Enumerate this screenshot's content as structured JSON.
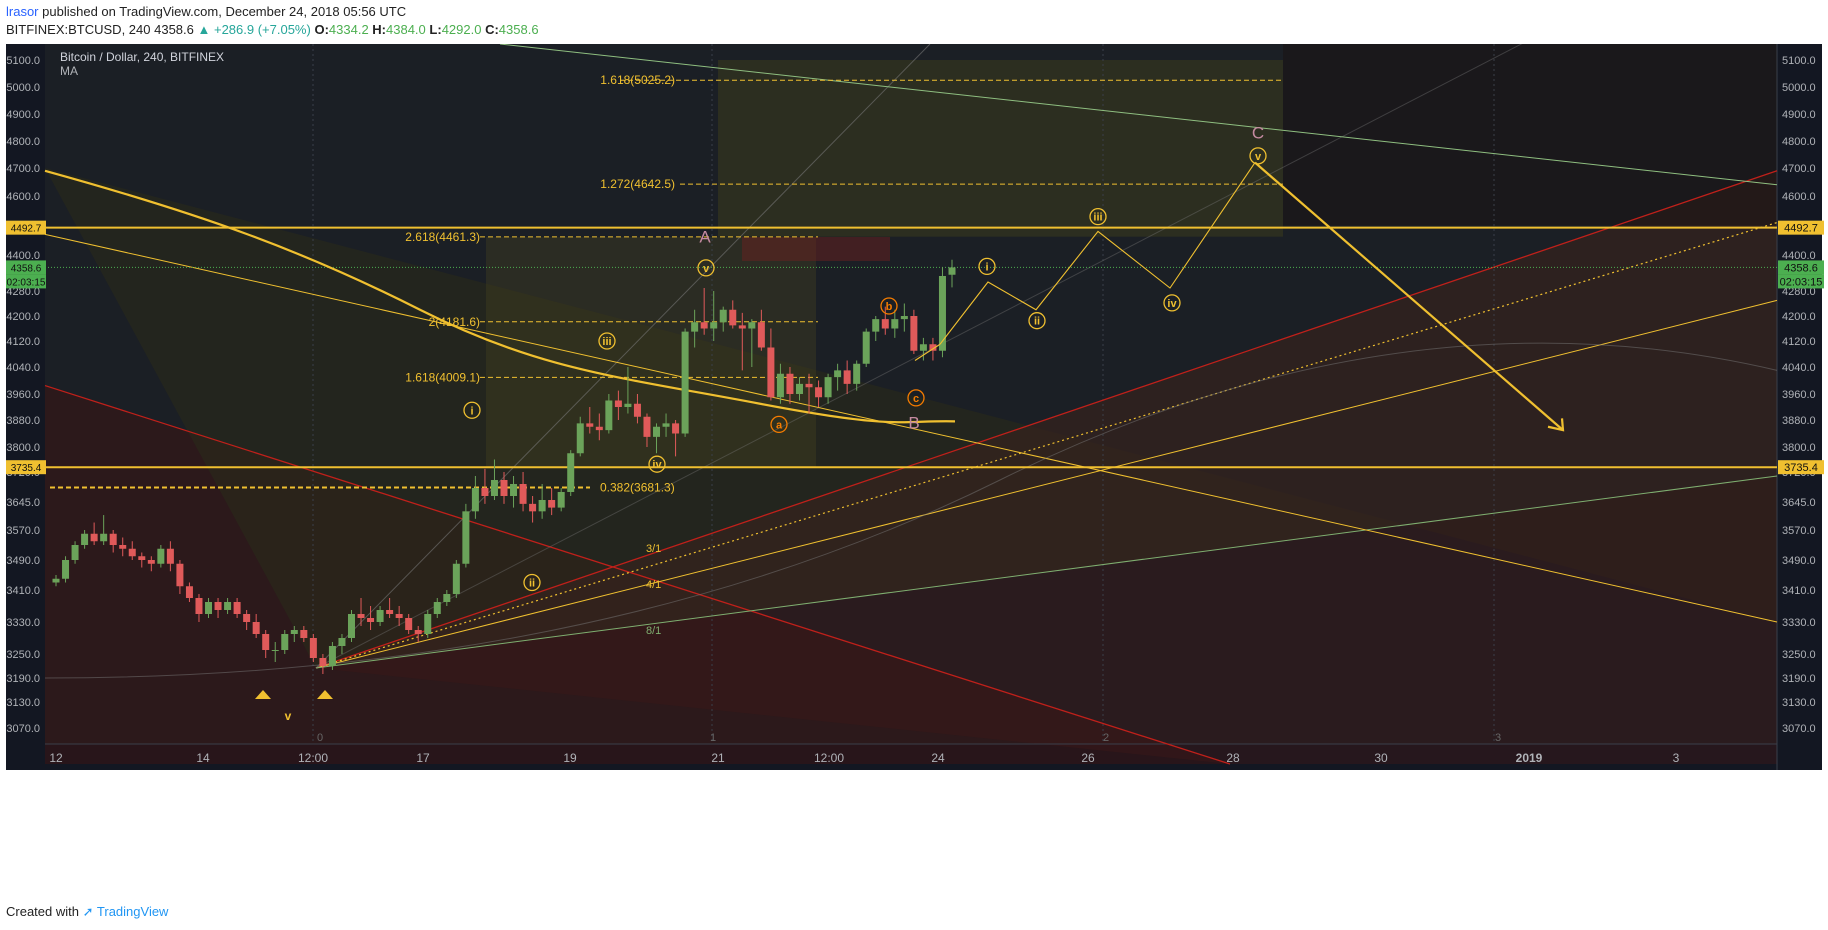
{
  "header": {
    "user": "lrasor",
    "published_text": "published on TradingView.com, December 24, 2018 05:56 UTC",
    "symbol": "BITFINEX:BTCUSD, 240",
    "last": "4358.6",
    "change": "▲ +286.9 (+7.05%)",
    "o_label": "O:",
    "o": "4334.2",
    "h_label": "H:",
    "h": "4384.0",
    "l_label": "L:",
    "l": "4292.0",
    "c_label": "C:",
    "c": "4358.6"
  },
  "legend": {
    "title": "Bitcoin / Dollar, 240, BITFINEX",
    "indicator": "MA"
  },
  "footer": {
    "created_with": "Created with",
    "brand": "TradingView"
  },
  "colors": {
    "background": "#131722",
    "up": "#6ba35a",
    "down": "#e05a5a",
    "gold": "#f0c030",
    "orange": "#f57c00",
    "red_line": "#c0201a",
    "green_line": "#7faf70",
    "axis_text": "#b0b3b8",
    "pink": "#c48aa0"
  },
  "chart_data": {
    "type": "candlestick",
    "symbol": "BITFINEX:BTCUSD",
    "interval": "240",
    "ylim": [
      3020,
      5160
    ],
    "y_ticks": [
      3070,
      3130,
      3190,
      3250,
      3330,
      3410,
      3490,
      3570,
      3645,
      3720,
      3800,
      3880,
      3960,
      4040,
      4120,
      4200,
      4280,
      4400,
      4600,
      4700,
      4800,
      4900,
      5000,
      5100
    ],
    "y_tick_labels": [
      "3070.0",
      "3130.0",
      "3190.0",
      "3250.0",
      "3330.0",
      "3410.0",
      "3490.0",
      "3570.0",
      "3645.0",
      "3720.0",
      "3800.0",
      "3880.0",
      "3960.0",
      "4040.0",
      "4120.0",
      "4200.0",
      "4280.0",
      "4400.0",
      "4600.0",
      "4700.0",
      "4800.0",
      "4900.0",
      "5000.0",
      "5100.0"
    ],
    "x_ticks": [
      "12",
      "14",
      "12:00",
      "17",
      "19",
      "21",
      "12:00",
      "24",
      "26",
      "28",
      "30",
      "2019",
      "3"
    ],
    "price_tags": [
      {
        "label": "4492.7",
        "value": 4492.7,
        "color": "#f0c030"
      },
      {
        "label": "4358.6",
        "value": 4358.6,
        "color": "#4caf50"
      },
      {
        "label": "02:03:15",
        "value": 4312,
        "color": "#4caf50"
      },
      {
        "label": "3735.4",
        "value": 3735.4,
        "color": "#f0c030"
      }
    ],
    "horizontal_levels": [
      4492.7,
      3735.4
    ],
    "last_price": 4358.6,
    "candles": [
      [
        3430,
        3450,
        3420,
        3440
      ],
      [
        3440,
        3500,
        3430,
        3490
      ],
      [
        3490,
        3540,
        3480,
        3530
      ],
      [
        3530,
        3570,
        3520,
        3560
      ],
      [
        3560,
        3590,
        3530,
        3540
      ],
      [
        3540,
        3610,
        3530,
        3560
      ],
      [
        3560,
        3570,
        3510,
        3530
      ],
      [
        3530,
        3550,
        3500,
        3520
      ],
      [
        3520,
        3540,
        3490,
        3500
      ],
      [
        3500,
        3510,
        3470,
        3490
      ],
      [
        3490,
        3500,
        3460,
        3480
      ],
      [
        3480,
        3530,
        3470,
        3520
      ],
      [
        3520,
        3540,
        3460,
        3480
      ],
      [
        3480,
        3490,
        3400,
        3420
      ],
      [
        3420,
        3430,
        3380,
        3390
      ],
      [
        3390,
        3400,
        3330,
        3350
      ],
      [
        3350,
        3390,
        3340,
        3380
      ],
      [
        3380,
        3390,
        3340,
        3360
      ],
      [
        3360,
        3390,
        3350,
        3380
      ],
      [
        3380,
        3390,
        3340,
        3350
      ],
      [
        3350,
        3360,
        3310,
        3330
      ],
      [
        3330,
        3350,
        3290,
        3300
      ],
      [
        3300,
        3310,
        3240,
        3260
      ],
      [
        3260,
        3280,
        3230,
        3260
      ],
      [
        3260,
        3310,
        3250,
        3300
      ],
      [
        3300,
        3320,
        3280,
        3310
      ],
      [
        3310,
        3320,
        3280,
        3290
      ],
      [
        3290,
        3300,
        3230,
        3240
      ],
      [
        3240,
        3250,
        3200,
        3220
      ],
      [
        3220,
        3280,
        3210,
        3270
      ],
      [
        3270,
        3300,
        3250,
        3290
      ],
      [
        3290,
        3360,
        3280,
        3350
      ],
      [
        3350,
        3390,
        3320,
        3340
      ],
      [
        3340,
        3370,
        3310,
        3330
      ],
      [
        3330,
        3370,
        3320,
        3360
      ],
      [
        3360,
        3390,
        3340,
        3350
      ],
      [
        3350,
        3370,
        3320,
        3340
      ],
      [
        3340,
        3350,
        3300,
        3310
      ],
      [
        3310,
        3320,
        3280,
        3300
      ],
      [
        3300,
        3360,
        3290,
        3350
      ],
      [
        3350,
        3390,
        3340,
        3380
      ],
      [
        3380,
        3410,
        3370,
        3400
      ],
      [
        3400,
        3490,
        3390,
        3480
      ],
      [
        3480,
        3640,
        3470,
        3620
      ],
      [
        3620,
        3710,
        3600,
        3680
      ],
      [
        3680,
        3730,
        3640,
        3660
      ],
      [
        3660,
        3760,
        3650,
        3700
      ],
      [
        3700,
        3720,
        3640,
        3660
      ],
      [
        3660,
        3710,
        3630,
        3690
      ],
      [
        3690,
        3720,
        3620,
        3640
      ],
      [
        3640,
        3660,
        3590,
        3620
      ],
      [
        3620,
        3690,
        3600,
        3650
      ],
      [
        3650,
        3680,
        3610,
        3630
      ],
      [
        3630,
        3680,
        3620,
        3670
      ],
      [
        3670,
        3790,
        3660,
        3780
      ],
      [
        3780,
        3890,
        3770,
        3870
      ],
      [
        3870,
        3920,
        3840,
        3860
      ],
      [
        3860,
        3900,
        3820,
        3850
      ],
      [
        3850,
        3960,
        3840,
        3940
      ],
      [
        3940,
        3970,
        3880,
        3920
      ],
      [
        3920,
        4040,
        3900,
        3930
      ],
      [
        3930,
        3960,
        3870,
        3890
      ],
      [
        3890,
        3900,
        3800,
        3830
      ],
      [
        3830,
        3870,
        3780,
        3860
      ],
      [
        3860,
        3900,
        3830,
        3870
      ],
      [
        3870,
        3880,
        3770,
        3840
      ],
      [
        3840,
        4160,
        3830,
        4150
      ],
      [
        4150,
        4220,
        4100,
        4180
      ],
      [
        4180,
        4290,
        4140,
        4160
      ],
      [
        4160,
        4280,
        4120,
        4180
      ],
      [
        4180,
        4230,
        4150,
        4220
      ],
      [
        4220,
        4250,
        4160,
        4170
      ],
      [
        4170,
        4210,
        4030,
        4160
      ],
      [
        4160,
        4190,
        4040,
        4180
      ],
      [
        4180,
        4220,
        4090,
        4100
      ],
      [
        4100,
        4160,
        3940,
        3950
      ],
      [
        3950,
        4050,
        3930,
        4020
      ],
      [
        4020,
        4040,
        3930,
        3960
      ],
      [
        3960,
        4010,
        3940,
        3990
      ],
      [
        3990,
        4020,
        3900,
        3980
      ],
      [
        3980,
        4000,
        3920,
        3950
      ],
      [
        3950,
        4020,
        3930,
        4010
      ],
      [
        4010,
        4050,
        3970,
        4030
      ],
      [
        4030,
        4060,
        3960,
        3990
      ],
      [
        3990,
        4060,
        3970,
        4050
      ],
      [
        4050,
        4160,
        4040,
        4150
      ],
      [
        4150,
        4200,
        4120,
        4190
      ],
      [
        4190,
        4230,
        4140,
        4160
      ],
      [
        4160,
        4220,
        4130,
        4190
      ],
      [
        4190,
        4240,
        4150,
        4200
      ],
      [
        4200,
        4220,
        4080,
        4090
      ],
      [
        4090,
        4130,
        4060,
        4110
      ],
      [
        4110,
        4130,
        4060,
        4090
      ],
      [
        4090,
        4360,
        4070,
        4330
      ],
      [
        4334.2,
        4384.0,
        4292.0,
        4358.6
      ]
    ],
    "fib_labels": [
      {
        "label": "1.618(5025.2)",
        "value": 5025.2
      },
      {
        "label": "1.272(4642.5)",
        "value": 4642.5
      },
      {
        "label": "2.618(4461.3)",
        "value": 4461.3
      },
      {
        "label": "2(4181.6)",
        "value": 4181.6
      },
      {
        "label": "1.618(4009.1)",
        "value": 4009.1
      },
      {
        "label": "0.382(3681.3)",
        "value": 3681.3
      }
    ],
    "wave_labels": [
      "A",
      "B",
      "C",
      "v",
      "iii",
      "i",
      "ii",
      "iv",
      "a",
      "b",
      "c",
      "i",
      "ii",
      "iii",
      "iv",
      "v"
    ],
    "fan_labels": [
      "3/1",
      "4/1",
      "8/1"
    ],
    "time_markers": [
      "0",
      "1",
      "2",
      "3"
    ]
  }
}
